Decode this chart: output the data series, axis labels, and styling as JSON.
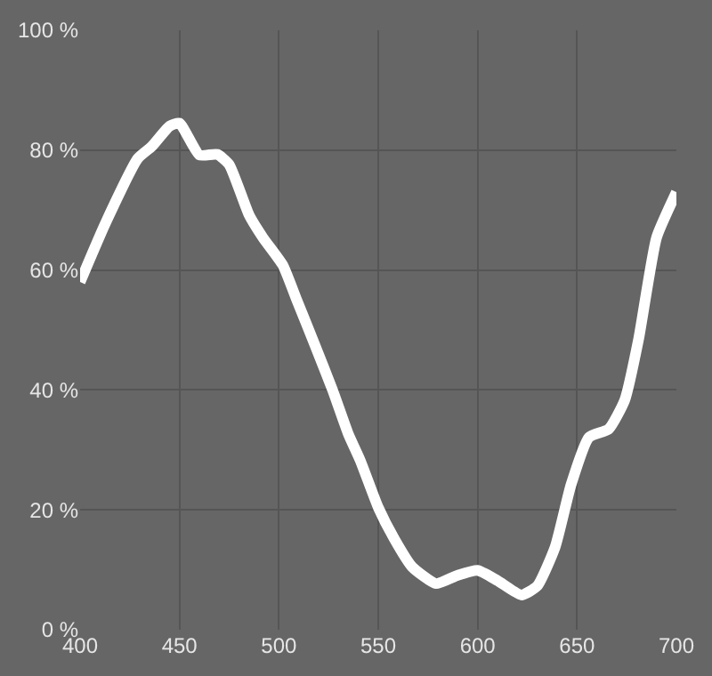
{
  "chart_data": {
    "type": "line",
    "xlim": [
      400,
      700
    ],
    "ylim": [
      0,
      100
    ],
    "xticks": [
      400,
      450,
      500,
      550,
      600,
      650,
      700
    ],
    "yticks": [
      {
        "value": 0,
        "label": "0 %"
      },
      {
        "value": 20,
        "label": "20 %"
      },
      {
        "value": 40,
        "label": "40 %"
      },
      {
        "value": 60,
        "label": "60 %"
      },
      {
        "value": 80,
        "label": "80 %"
      },
      {
        "value": 100,
        "label": "100 %"
      }
    ],
    "grid": true,
    "marker": "none",
    "line_style": "solid",
    "series": [
      {
        "color": "#ffffff",
        "x": [
          400,
          413,
          429,
          436,
          445,
          450,
          460,
          469,
          475,
          485,
          492,
          502,
          509,
          518,
          527,
          535,
          541,
          550,
          558,
          567,
          579,
          590,
          600,
          610,
          622,
          630,
          639,
          647,
          656,
          666,
          674,
          681,
          690,
          700
        ],
        "values": [
          58,
          68,
          78.6,
          80.6,
          84,
          84.5,
          79.2,
          79.3,
          77.6,
          69.2,
          65.4,
          60.8,
          55,
          47.6,
          40,
          32.6,
          28.2,
          20.4,
          15.2,
          10.5,
          7.7,
          9.1,
          9.9,
          8.2,
          5.8,
          7.3,
          13.8,
          24.2,
          32.1,
          33.5,
          38.3,
          48.5,
          65.4,
          73
        ]
      }
    ]
  }
}
